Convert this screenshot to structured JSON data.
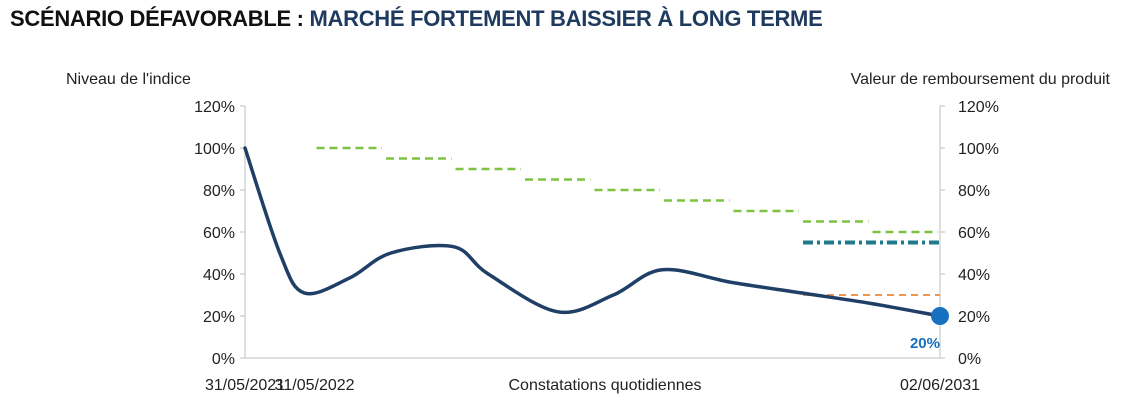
{
  "header": {
    "title_prefix": "SCÉNARIO DÉFAVORABLE : ",
    "title_main": "MARCHÉ FORTEMENT BAISSIER À LONG TERME"
  },
  "chart_data": {
    "type": "line",
    "ylabel_left": "Niveau de l'indice",
    "ylabel_right": "Valeur de remboursement du produit",
    "xlabel": "Constatations quotidiennes",
    "x_ticks": [
      "31/05/2021",
      "31/05/2022",
      "02/06/2031"
    ],
    "ylim": [
      0,
      120
    ],
    "y_ticks": [
      "0%",
      "20%",
      "40%",
      "60%",
      "80%",
      "100%",
      "120%"
    ],
    "index_series": {
      "color": "#1f3f66",
      "points": [
        [
          0,
          100
        ],
        [
          0.5,
          50
        ],
        [
          0.85,
          31
        ],
        [
          1.5,
          38
        ],
        [
          2.1,
          50
        ],
        [
          3.0,
          53
        ],
        [
          3.5,
          40
        ],
        [
          4.5,
          22
        ],
        [
          5.3,
          30
        ],
        [
          6.0,
          42
        ],
        [
          7.0,
          36
        ],
        [
          8.0,
          31
        ],
        [
          9.0,
          26
        ],
        [
          10.0,
          20
        ]
      ]
    },
    "autocall_barriers": {
      "color": "#7dc242",
      "segments": [
        [
          1,
          2,
          100
        ],
        [
          2,
          3,
          95
        ],
        [
          3,
          4,
          90
        ],
        [
          4,
          5,
          85
        ],
        [
          5,
          6,
          80
        ],
        [
          6,
          7,
          75
        ],
        [
          7,
          8,
          70
        ],
        [
          8,
          9,
          65
        ],
        [
          9,
          10,
          60
        ]
      ]
    },
    "coupon_barrier": {
      "color": "#1f7a8c",
      "from": 8,
      "to": 10,
      "value": 55
    },
    "capital_barrier": {
      "color": "#f0954a",
      "from": 8,
      "to": 10,
      "value": 30
    },
    "final_point": {
      "x": 10,
      "y": 20,
      "label": "20%",
      "color": "#1570c0"
    }
  }
}
